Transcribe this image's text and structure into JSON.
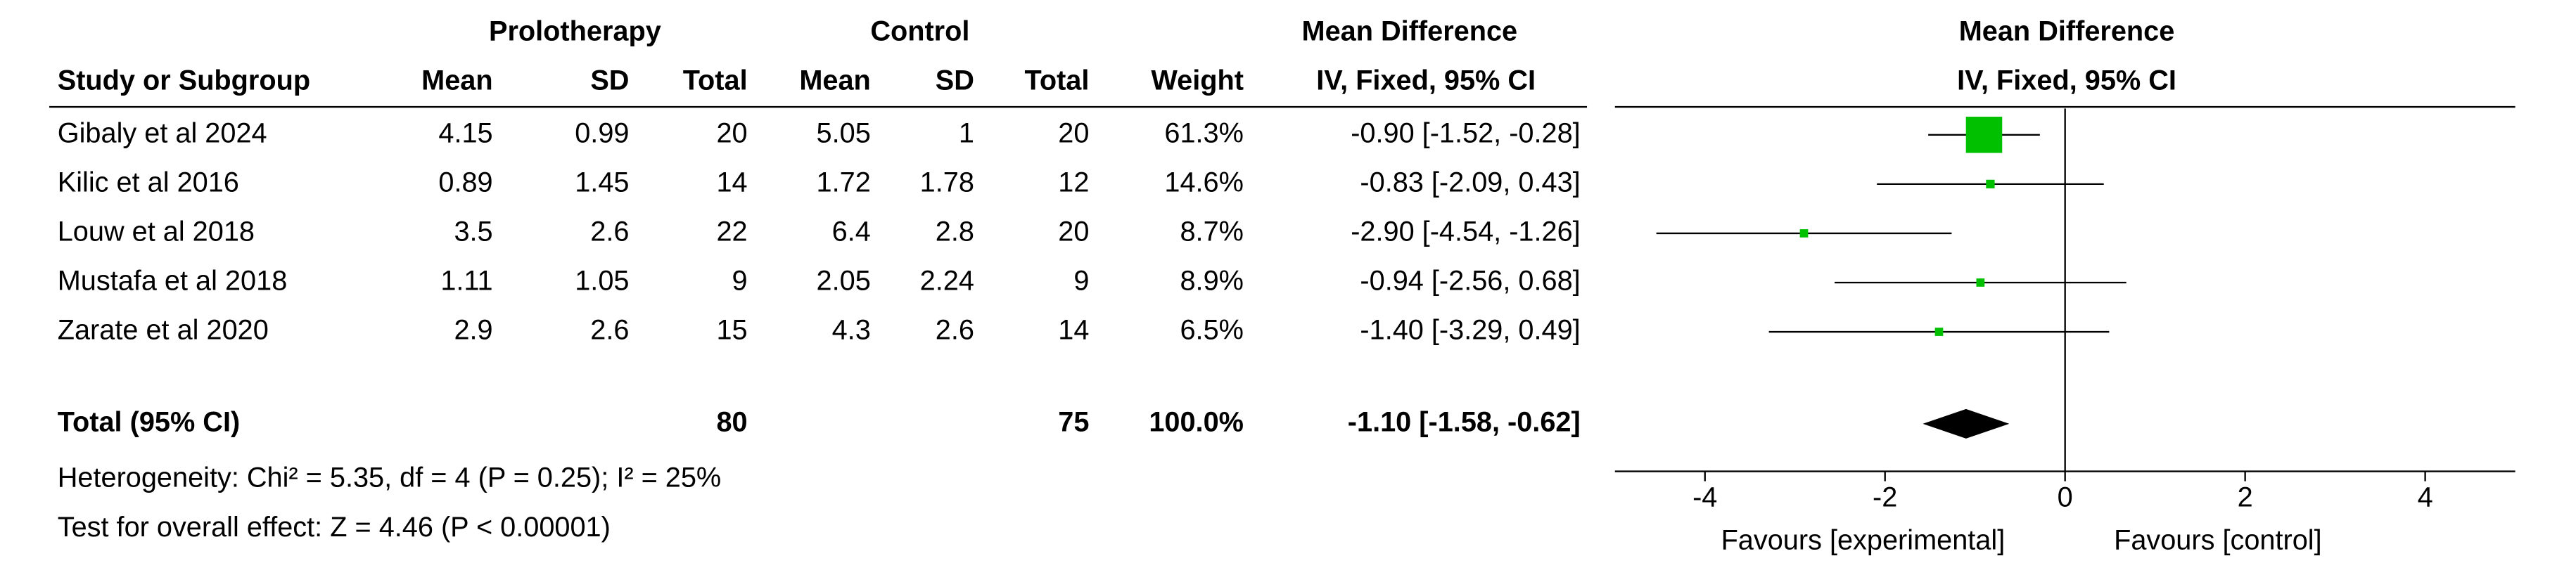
{
  "chart_data": {
    "type": "forest",
    "headers": {
      "group1": "Prolotherapy",
      "group2": "Control",
      "effect": "Mean Difference",
      "study": "Study or Subgroup",
      "mean": "Mean",
      "sd": "SD",
      "total": "Total",
      "weight": "Weight",
      "method": "IV, Fixed, 95% CI"
    },
    "plot_title": "Mean Difference",
    "plot_subtitle": "IV, Fixed, 95% CI",
    "studies": [
      {
        "name": "Gibaly et al 2024",
        "exp_mean": 4.15,
        "exp_sd": 0.99,
        "exp_total": 20,
        "ctrl_mean": 5.05,
        "ctrl_sd": 1,
        "ctrl_total": 20,
        "weight": 61.3,
        "weight_label": "61.3%",
        "md": -0.9,
        "ci_low": -1.52,
        "ci_high": -0.28,
        "ci_label": "-0.90 [-1.52, -0.28]"
      },
      {
        "name": "Kilic et al 2016",
        "exp_mean": 0.89,
        "exp_sd": 1.45,
        "exp_total": 14,
        "ctrl_mean": 1.72,
        "ctrl_sd": 1.78,
        "ctrl_total": 12,
        "weight": 14.6,
        "weight_label": "14.6%",
        "md": -0.83,
        "ci_low": -2.09,
        "ci_high": 0.43,
        "ci_label": "-0.83 [-2.09, 0.43]"
      },
      {
        "name": "Louw et al 2018",
        "exp_mean": 3.5,
        "exp_sd": 2.6,
        "exp_total": 22,
        "ctrl_mean": 6.4,
        "ctrl_sd": 2.8,
        "ctrl_total": 20,
        "weight": 8.7,
        "weight_label": "8.7%",
        "md": -2.9,
        "ci_low": -4.54,
        "ci_high": -1.26,
        "ci_label": "-2.90 [-4.54, -1.26]"
      },
      {
        "name": "Mustafa et al 2018",
        "exp_mean": 1.11,
        "exp_sd": 1.05,
        "exp_total": 9,
        "ctrl_mean": 2.05,
        "ctrl_sd": 2.24,
        "ctrl_total": 9,
        "weight": 8.9,
        "weight_label": "8.9%",
        "md": -0.94,
        "ci_low": -2.56,
        "ci_high": 0.68,
        "ci_label": "-0.94 [-2.56, 0.68]"
      },
      {
        "name": "Zarate et al 2020",
        "exp_mean": 2.9,
        "exp_sd": 2.6,
        "exp_total": 15,
        "ctrl_mean": 4.3,
        "ctrl_sd": 2.6,
        "ctrl_total": 14,
        "weight": 6.5,
        "weight_label": "6.5%",
        "md": -1.4,
        "ci_low": -3.29,
        "ci_high": 0.49,
        "ci_label": "-1.40 [-3.29, 0.49]"
      }
    ],
    "total": {
      "name": "Total (95% CI)",
      "exp_total": 80,
      "ctrl_total": 75,
      "weight": 100,
      "weight_label": "100.0%",
      "md": -1.1,
      "ci_low": -1.58,
      "ci_high": -0.62,
      "ci_label": "-1.10 [-1.58, -0.62]"
    },
    "heterogeneity": "Heterogeneity: Chi² = 5.35, df = 4 (P = 0.25); I² = 25%",
    "overall_effect": "Test for overall effect: Z = 4.46 (P < 0.00001)",
    "xlim": [
      -5,
      5
    ],
    "xticks": [
      -4,
      -2,
      0,
      2,
      4
    ],
    "x_label_left": "Favours [experimental]",
    "x_label_right": "Favours [control]",
    "color": "#00c000"
  }
}
